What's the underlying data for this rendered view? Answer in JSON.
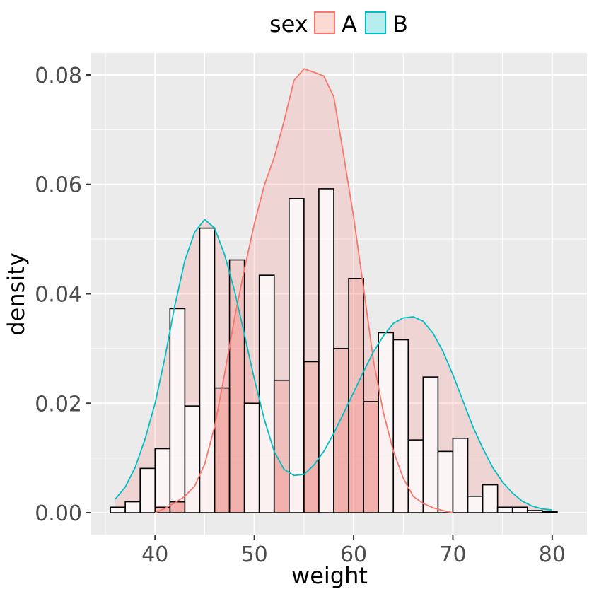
{
  "chart_data": {
    "type": "histogram-density",
    "title": "",
    "xlabel": "weight",
    "ylabel": "density",
    "xlim": [
      33.5,
      83.5
    ],
    "ylim": [
      -0.004,
      0.084
    ],
    "x_ticks": [
      40,
      50,
      60,
      70,
      80
    ],
    "y_ticks": [
      0.0,
      0.02,
      0.04,
      0.06,
      0.08
    ],
    "y_tick_labels": [
      "0.00",
      "0.02",
      "0.04",
      "0.06",
      "0.08"
    ],
    "grid": true,
    "legend": {
      "title": "sex",
      "position": "top",
      "entries": [
        {
          "label": "A",
          "color": "#F8766D",
          "fill": "#F8766D"
        },
        {
          "label": "B",
          "color": "#00BFC4",
          "fill": "#00BFC4"
        }
      ]
    },
    "histogram": {
      "bin_width": 1.5,
      "bins": [
        {
          "x_left": 35.5,
          "x_right": 37.0,
          "A": 0.0,
          "B": 0.001
        },
        {
          "x_left": 37.0,
          "x_right": 38.5,
          "A": 0.0,
          "B": 0.002
        },
        {
          "x_left": 38.5,
          "x_right": 40.0,
          "A": 0.0,
          "B": 0.0081
        },
        {
          "x_left": 40.0,
          "x_right": 41.5,
          "A": 0.001,
          "B": 0.0107
        },
        {
          "x_left": 41.5,
          "x_right": 43.0,
          "A": 0.002,
          "B": 0.0353
        },
        {
          "x_left": 43.0,
          "x_right": 44.5,
          "A": 0.0,
          "B": 0.0195
        },
        {
          "x_left": 44.5,
          "x_right": 46.0,
          "A": 0.0,
          "B": 0.052
        },
        {
          "x_left": 46.0,
          "x_right": 47.5,
          "A": 0.0228,
          "B": 0.0
        },
        {
          "x_left": 47.5,
          "x_right": 49.0,
          "A": 0.0462,
          "B": 0.0
        },
        {
          "x_left": 49.0,
          "x_right": 50.5,
          "A": 0.0,
          "B": 0.02
        },
        {
          "x_left": 50.5,
          "x_right": 52.0,
          "A": 0.0,
          "B": 0.0434
        },
        {
          "x_left": 52.0,
          "x_right": 53.5,
          "A": 0.0242,
          "B": 0.0
        },
        {
          "x_left": 53.5,
          "x_right": 55.0,
          "A": 0.0,
          "B": 0.0574
        },
        {
          "x_left": 55.0,
          "x_right": 56.5,
          "A": 0.0276,
          "B": 0.0
        },
        {
          "x_left": 56.5,
          "x_right": 58.0,
          "A": 0.0,
          "B": 0.0592
        },
        {
          "x_left": 58.0,
          "x_right": 59.5,
          "A": 0.03,
          "B": 0.0
        },
        {
          "x_left": 59.5,
          "x_right": 61.0,
          "A": 0.0428,
          "B": 0.0
        },
        {
          "x_left": 61.0,
          "x_right": 62.5,
          "A": 0.0203,
          "B": 0.0
        },
        {
          "x_left": 62.5,
          "x_right": 64.0,
          "A": 0.0,
          "B": 0.0329
        },
        {
          "x_left": 64.0,
          "x_right": 65.5,
          "A": 0.0,
          "B": 0.0316
        },
        {
          "x_left": 65.5,
          "x_right": 67.0,
          "A": 0.0,
          "B": 0.0133
        },
        {
          "x_left": 67.0,
          "x_right": 68.5,
          "A": 0.0,
          "B": 0.0248
        },
        {
          "x_left": 68.5,
          "x_right": 70.0,
          "A": 0.0,
          "B": 0.0112
        },
        {
          "x_left": 70.0,
          "x_right": 71.5,
          "A": 0.0,
          "B": 0.0136
        },
        {
          "x_left": 71.5,
          "x_right": 73.0,
          "A": 0.0,
          "B": 0.003
        },
        {
          "x_left": 73.0,
          "x_right": 74.5,
          "A": 0.0,
          "B": 0.0051
        },
        {
          "x_left": 74.5,
          "x_right": 76.0,
          "A": 0.0,
          "B": 0.001
        },
        {
          "x_left": 76.0,
          "x_right": 77.5,
          "A": 0.0,
          "B": 0.001
        },
        {
          "x_left": 77.5,
          "x_right": 79.0,
          "A": 0.0,
          "B": 0.0004
        },
        {
          "x_left": 79.0,
          "x_right": 80.5,
          "A": 0.0,
          "B": 0.0002
        }
      ]
    },
    "density_series": [
      {
        "name": "A",
        "line_color": "#F8766D",
        "fill": "#F8766D",
        "x": [
          40.0,
          41.0,
          42.0,
          43.0,
          44.0,
          45.0,
          46.0,
          47.0,
          48.0,
          49.0,
          50.0,
          51.0,
          52.0,
          53.0,
          54.0,
          55.0,
          56.0,
          57.0,
          58.0,
          59.0,
          60.0,
          61.0,
          62.0,
          63.0,
          64.0,
          65.0,
          66.0,
          67.0,
          68.0,
          69.0,
          70.0
        ],
        "y": [
          0.0,
          0.0008,
          0.0018,
          0.003,
          0.0049,
          0.0089,
          0.0157,
          0.0253,
          0.0355,
          0.0445,
          0.0528,
          0.0598,
          0.0649,
          0.0716,
          0.079,
          0.0811,
          0.0805,
          0.0798,
          0.076,
          0.0653,
          0.054,
          0.0411,
          0.0278,
          0.0183,
          0.0113,
          0.0063,
          0.003,
          0.0017,
          0.0009,
          0.0004,
          0.0
        ]
      },
      {
        "name": "B",
        "line_color": "#00BFC4",
        "fill": "#F8766D",
        "x": [
          36.0,
          37.0,
          38.0,
          39.0,
          40.0,
          41.0,
          42.0,
          43.0,
          44.0,
          45.0,
          46.0,
          47.0,
          48.0,
          49.0,
          50.0,
          51.0,
          52.0,
          53.0,
          54.0,
          55.0,
          56.0,
          57.0,
          58.0,
          59.0,
          60.0,
          61.0,
          62.0,
          63.0,
          64.0,
          65.0,
          66.0,
          67.0,
          68.0,
          69.0,
          70.0,
          71.0,
          72.0,
          73.0,
          74.0,
          75.0,
          76.0,
          77.0,
          78.0,
          79.0,
          80.0
        ],
        "y": [
          0.0025,
          0.0047,
          0.0083,
          0.0135,
          0.02,
          0.0284,
          0.0379,
          0.0461,
          0.0513,
          0.0536,
          0.052,
          0.0472,
          0.0406,
          0.0326,
          0.0244,
          0.0171,
          0.0112,
          0.0079,
          0.0068,
          0.007,
          0.0087,
          0.0112,
          0.0145,
          0.0182,
          0.022,
          0.0258,
          0.0294,
          0.0323,
          0.0346,
          0.0356,
          0.0358,
          0.035,
          0.0328,
          0.0295,
          0.0252,
          0.0205,
          0.0158,
          0.0118,
          0.0083,
          0.0056,
          0.0036,
          0.0021,
          0.0012,
          0.0007,
          0.0005
        ]
      }
    ]
  }
}
